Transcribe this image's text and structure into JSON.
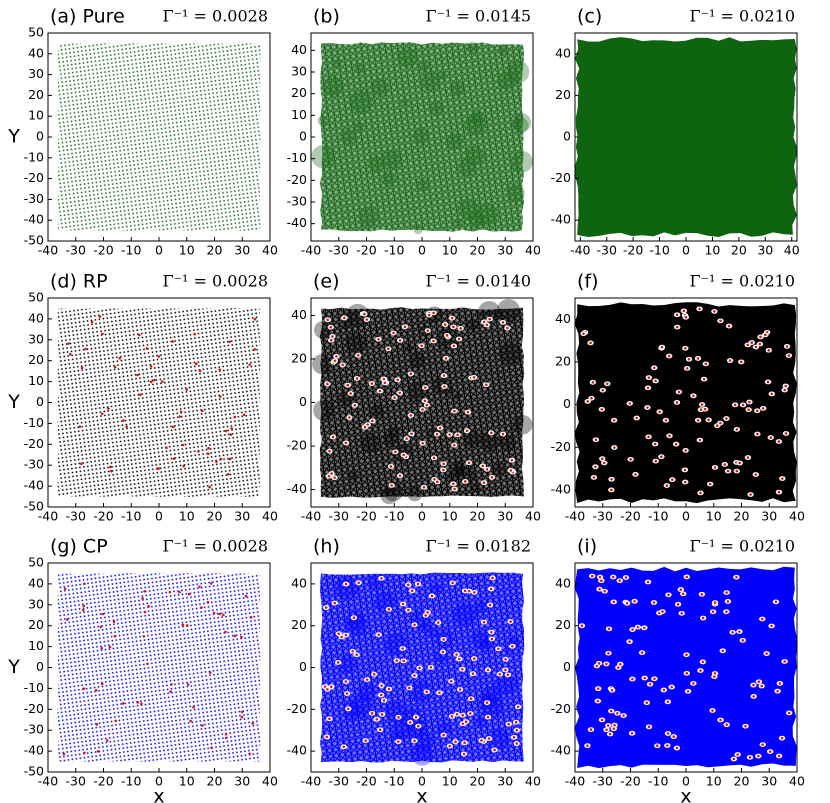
{
  "chart_data": [
    {
      "type": "scatter",
      "title": "(a) Pure",
      "annotation": "Γ⁻¹ = 0.0028",
      "color": "#1e6b1e",
      "ylabel": "Y",
      "xlim": [
        -40,
        40
      ],
      "xticks": [
        -40,
        -30,
        -20,
        -10,
        0,
        10,
        20,
        30,
        40
      ],
      "ylim": [
        -50,
        50
      ],
      "yticks": [
        -50,
        -40,
        -30,
        -20,
        -10,
        0,
        10,
        20,
        30,
        40,
        50
      ]
    },
    {
      "type": "scatter",
      "title": "(b)",
      "annotation": "Γ⁻¹ = 0.0145",
      "color": "#1e6b1e",
      "xlim": [
        -40,
        40
      ],
      "xticks": [
        -40,
        -30,
        -20,
        -10,
        0,
        10,
        20,
        30,
        40
      ],
      "ylim": [
        -48,
        48
      ],
      "yticks": [
        -40,
        -30,
        -20,
        -10,
        0,
        10,
        20,
        30,
        40
      ]
    },
    {
      "type": "scatter",
      "title": "(c)",
      "annotation": "Γ⁻¹ = 0.0210",
      "color": "#0f640f",
      "xlim": [
        -42,
        42
      ],
      "xticks": [
        -40,
        -30,
        -20,
        -10,
        0,
        10,
        20,
        30,
        40
      ],
      "ylim": [
        -50,
        50
      ],
      "yticks": [
        -40,
        -20,
        0,
        20,
        40
      ]
    },
    {
      "type": "scatter",
      "title": "(d)   RP",
      "annotation": "Γ⁻¹ = 0.0028",
      "color": "#000000",
      "ylabel": "Y",
      "xlim": [
        -40,
        40
      ],
      "xticks": [
        -40,
        -30,
        -20,
        -10,
        0,
        10,
        20,
        30,
        40
      ],
      "ylim": [
        -50,
        50
      ],
      "yticks": [
        -50,
        -40,
        -30,
        -20,
        -10,
        0,
        10,
        20,
        30,
        40,
        50
      ]
    },
    {
      "type": "scatter",
      "title": "(e)",
      "annotation": "Γ⁻¹ = 0.0140",
      "color": "#000000",
      "xlim": [
        -40,
        40
      ],
      "xticks": [
        -40,
        -30,
        -20,
        -10,
        0,
        10,
        20,
        30,
        40
      ],
      "ylim": [
        -48,
        48
      ],
      "yticks": [
        -40,
        -20,
        0,
        20,
        40
      ]
    },
    {
      "type": "scatter",
      "title": "(f)",
      "annotation": "Γ⁻¹ = 0.0210",
      "color": "#000000",
      "xlim": [
        -40,
        40
      ],
      "xticks": [
        -40,
        -30,
        -20,
        -10,
        0,
        10,
        20,
        30,
        40
      ],
      "ylim": [
        -48,
        50
      ],
      "yticks": [
        -40,
        -20,
        0,
        20,
        40
      ]
    },
    {
      "type": "scatter",
      "title": "(g)   CP",
      "annotation": "Γ⁻¹ = 0.0028",
      "color": "#0000ff",
      "ylabel": "Y",
      "xlabel": "x",
      "xlim": [
        -40,
        40
      ],
      "xticks": [
        -40,
        -30,
        -20,
        -10,
        0,
        10,
        20,
        30,
        40
      ],
      "ylim": [
        -50,
        50
      ],
      "yticks": [
        -50,
        -40,
        -30,
        -20,
        -10,
        0,
        10,
        20,
        30,
        40,
        50
      ]
    },
    {
      "type": "scatter",
      "title": "(h)",
      "annotation": "Γ⁻¹ = 0.0182",
      "color": "#0000ff",
      "xlabel": "x",
      "xlim": [
        -40,
        40
      ],
      "xticks": [
        -40,
        -30,
        -20,
        -10,
        0,
        10,
        20,
        30,
        40
      ],
      "ylim": [
        -50,
        50
      ],
      "yticks": [
        -40,
        -20,
        0,
        20,
        40
      ]
    },
    {
      "type": "scatter",
      "title": "(i)",
      "annotation": "Γ⁻¹ = 0.0210",
      "color": "#0000ff",
      "xlabel": "x",
      "xlim": [
        -40,
        40
      ],
      "xticks": [
        -40,
        -30,
        -20,
        -10,
        0,
        10,
        20,
        30,
        40
      ],
      "ylim": [
        -50,
        50
      ],
      "yticks": [
        -40,
        -20,
        0,
        20,
        40
      ]
    }
  ]
}
